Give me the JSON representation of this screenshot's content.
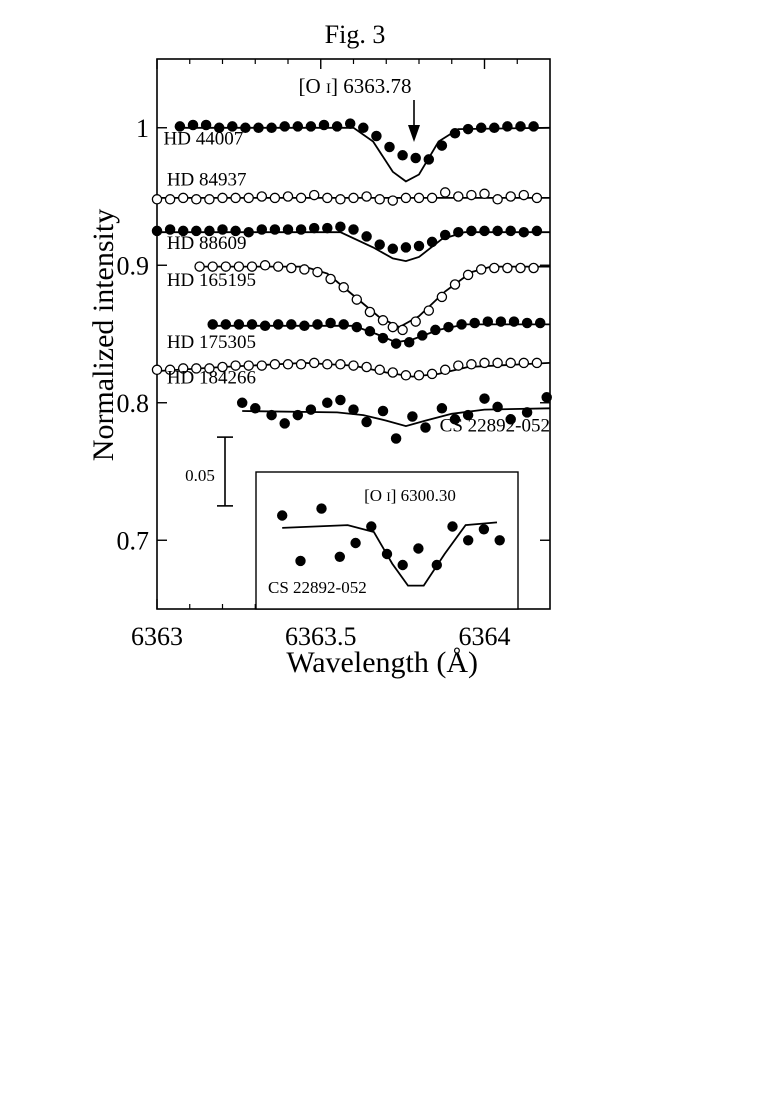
{
  "figure_label": "Fig. 3",
  "chart_data": {
    "type": "scatter",
    "xlabel": "Wavelength (Å)",
    "ylabel": "Normalized intensity",
    "xlim": [
      6363.0,
      6364.2
    ],
    "ylim": [
      0.65,
      1.05
    ],
    "xticks": [
      {
        "value": 6363,
        "label": "6363"
      },
      {
        "value": 6363.5,
        "label": "6363.5"
      },
      {
        "value": 6364,
        "label": "6364"
      }
    ],
    "yticks": [
      {
        "value": 0.7,
        "label": "0.7"
      },
      {
        "value": 0.8,
        "label": "0.8"
      },
      {
        "value": 0.9,
        "label": "0.9"
      },
      {
        "value": 1.0,
        "label": "1"
      }
    ],
    "line_label": {
      "text_main": "[O ",
      "text_ion": "I",
      "text_rest": "] 6363.78",
      "x": 6363.78
    },
    "scale_bar": {
      "label": "0.05",
      "from": 0.725,
      "to": 0.775
    },
    "series": [
      {
        "name": "HD 44007",
        "filled": true,
        "label_x": 6363.02,
        "label_y": 0.988,
        "points": [
          [
            6363.07,
            1.001
          ],
          [
            6363.11,
            1.002
          ],
          [
            6363.15,
            1.002
          ],
          [
            6363.19,
            1.0
          ],
          [
            6363.23,
            1.001
          ],
          [
            6363.27,
            1.0
          ],
          [
            6363.31,
            1.0
          ],
          [
            6363.35,
            1.0
          ],
          [
            6363.39,
            1.001
          ],
          [
            6363.43,
            1.001
          ],
          [
            6363.47,
            1.001
          ],
          [
            6363.51,
            1.002
          ],
          [
            6363.55,
            1.001
          ],
          [
            6363.59,
            1.003
          ],
          [
            6363.63,
            1.0
          ],
          [
            6363.67,
            0.994
          ],
          [
            6363.71,
            0.986
          ],
          [
            6363.75,
            0.98
          ],
          [
            6363.79,
            0.978
          ],
          [
            6363.83,
            0.977
          ],
          [
            6363.87,
            0.987
          ],
          [
            6363.91,
            0.996
          ],
          [
            6363.95,
            0.999
          ],
          [
            6363.99,
            1.0
          ],
          [
            6364.03,
            1.0
          ],
          [
            6364.07,
            1.001
          ],
          [
            6364.11,
            1.001
          ],
          [
            6364.15,
            1.001
          ]
        ],
        "model": [
          [
            6363.06,
            1.0
          ],
          [
            6363.6,
            1.0
          ],
          [
            6363.66,
            0.99
          ],
          [
            6363.72,
            0.968
          ],
          [
            6363.76,
            0.961
          ],
          [
            6363.8,
            0.966
          ],
          [
            6363.86,
            0.99
          ],
          [
            6363.92,
            0.999
          ],
          [
            6364.2,
            1.0
          ]
        ]
      },
      {
        "name": "HD 84937",
        "filled": false,
        "label_x": 6363.03,
        "label_y": 0.958,
        "points": [
          [
            6363.0,
            0.948
          ],
          [
            6363.04,
            0.948
          ],
          [
            6363.08,
            0.949
          ],
          [
            6363.12,
            0.948
          ],
          [
            6363.16,
            0.948
          ],
          [
            6363.2,
            0.949
          ],
          [
            6363.24,
            0.949
          ],
          [
            6363.28,
            0.949
          ],
          [
            6363.32,
            0.95
          ],
          [
            6363.36,
            0.949
          ],
          [
            6363.4,
            0.95
          ],
          [
            6363.44,
            0.949
          ],
          [
            6363.48,
            0.951
          ],
          [
            6363.52,
            0.949
          ],
          [
            6363.56,
            0.948
          ],
          [
            6363.6,
            0.949
          ],
          [
            6363.64,
            0.95
          ],
          [
            6363.68,
            0.948
          ],
          [
            6363.72,
            0.947
          ],
          [
            6363.76,
            0.949
          ],
          [
            6363.8,
            0.949
          ],
          [
            6363.84,
            0.949
          ],
          [
            6363.88,
            0.953
          ],
          [
            6363.92,
            0.95
          ],
          [
            6363.96,
            0.951
          ],
          [
            6364.0,
            0.952
          ],
          [
            6364.04,
            0.948
          ],
          [
            6364.08,
            0.95
          ],
          [
            6364.12,
            0.951
          ],
          [
            6364.16,
            0.949
          ]
        ],
        "model": [
          [
            6363.0,
            0.949
          ],
          [
            6364.2,
            0.949
          ]
        ]
      },
      {
        "name": "HD 88609",
        "filled": true,
        "label_x": 6363.03,
        "label_y": 0.912,
        "points": [
          [
            6363.0,
            0.925
          ],
          [
            6363.04,
            0.926
          ],
          [
            6363.08,
            0.925
          ],
          [
            6363.12,
            0.925
          ],
          [
            6363.16,
            0.925
          ],
          [
            6363.2,
            0.926
          ],
          [
            6363.24,
            0.925
          ],
          [
            6363.28,
            0.924
          ],
          [
            6363.32,
            0.926
          ],
          [
            6363.36,
            0.926
          ],
          [
            6363.4,
            0.926
          ],
          [
            6363.44,
            0.926
          ],
          [
            6363.48,
            0.927
          ],
          [
            6363.52,
            0.927
          ],
          [
            6363.56,
            0.928
          ],
          [
            6363.6,
            0.926
          ],
          [
            6363.64,
            0.921
          ],
          [
            6363.68,
            0.915
          ],
          [
            6363.72,
            0.912
          ],
          [
            6363.76,
            0.913
          ],
          [
            6363.8,
            0.914
          ],
          [
            6363.84,
            0.917
          ],
          [
            6363.88,
            0.922
          ],
          [
            6363.92,
            0.924
          ],
          [
            6363.96,
            0.925
          ],
          [
            6364.0,
            0.925
          ],
          [
            6364.04,
            0.925
          ],
          [
            6364.08,
            0.925
          ],
          [
            6364.12,
            0.924
          ],
          [
            6364.16,
            0.925
          ]
        ],
        "model": [
          [
            6363.0,
            0.924
          ],
          [
            6363.56,
            0.924
          ],
          [
            6363.66,
            0.913
          ],
          [
            6363.72,
            0.905
          ],
          [
            6363.76,
            0.903
          ],
          [
            6363.8,
            0.906
          ],
          [
            6363.87,
            0.919
          ],
          [
            6363.94,
            0.924
          ],
          [
            6364.2,
            0.924
          ]
        ]
      },
      {
        "name": "HD 165195",
        "filled": false,
        "label_x": 6363.03,
        "label_y": 0.885,
        "points": [
          [
            6363.13,
            0.899
          ],
          [
            6363.17,
            0.899
          ],
          [
            6363.21,
            0.899
          ],
          [
            6363.25,
            0.899
          ],
          [
            6363.29,
            0.899
          ],
          [
            6363.33,
            0.9
          ],
          [
            6363.37,
            0.899
          ],
          [
            6363.41,
            0.898
          ],
          [
            6363.45,
            0.897
          ],
          [
            6363.49,
            0.895
          ],
          [
            6363.53,
            0.89
          ],
          [
            6363.57,
            0.884
          ],
          [
            6363.61,
            0.875
          ],
          [
            6363.65,
            0.866
          ],
          [
            6363.69,
            0.86
          ],
          [
            6363.72,
            0.855
          ],
          [
            6363.75,
            0.853
          ],
          [
            6363.79,
            0.859
          ],
          [
            6363.83,
            0.867
          ],
          [
            6363.87,
            0.877
          ],
          [
            6363.91,
            0.886
          ],
          [
            6363.95,
            0.893
          ],
          [
            6363.99,
            0.897
          ],
          [
            6364.03,
            0.898
          ],
          [
            6364.07,
            0.898
          ],
          [
            6364.11,
            0.898
          ],
          [
            6364.15,
            0.898
          ]
        ],
        "model": [
          [
            6363.13,
            0.899
          ],
          [
            6363.45,
            0.899
          ],
          [
            6363.52,
            0.894
          ],
          [
            6363.6,
            0.878
          ],
          [
            6363.68,
            0.862
          ],
          [
            6363.74,
            0.855
          ],
          [
            6363.8,
            0.863
          ],
          [
            6363.88,
            0.881
          ],
          [
            6363.96,
            0.895
          ],
          [
            6364.02,
            0.899
          ],
          [
            6364.2,
            0.899
          ]
        ]
      },
      {
        "name": "HD 175305",
        "filled": true,
        "label_x": 6363.03,
        "label_y": 0.84,
        "points": [
          [
            6363.17,
            0.857
          ],
          [
            6363.21,
            0.857
          ],
          [
            6363.25,
            0.857
          ],
          [
            6363.29,
            0.857
          ],
          [
            6363.33,
            0.856
          ],
          [
            6363.37,
            0.857
          ],
          [
            6363.41,
            0.857
          ],
          [
            6363.45,
            0.856
          ],
          [
            6363.49,
            0.857
          ],
          [
            6363.53,
            0.858
          ],
          [
            6363.57,
            0.857
          ],
          [
            6363.61,
            0.855
          ],
          [
            6363.65,
            0.852
          ],
          [
            6363.69,
            0.847
          ],
          [
            6363.73,
            0.843
          ],
          [
            6363.77,
            0.844
          ],
          [
            6363.81,
            0.849
          ],
          [
            6363.85,
            0.853
          ],
          [
            6363.89,
            0.855
          ],
          [
            6363.93,
            0.857
          ],
          [
            6363.97,
            0.858
          ],
          [
            6364.01,
            0.859
          ],
          [
            6364.05,
            0.859
          ],
          [
            6364.09,
            0.859
          ],
          [
            6364.13,
            0.858
          ],
          [
            6364.17,
            0.858
          ]
        ],
        "model": [
          [
            6363.16,
            0.856
          ],
          [
            6363.6,
            0.856
          ],
          [
            6363.67,
            0.85
          ],
          [
            6363.73,
            0.844
          ],
          [
            6363.78,
            0.846
          ],
          [
            6363.86,
            0.853
          ],
          [
            6363.94,
            0.857
          ],
          [
            6364.2,
            0.857
          ]
        ]
      },
      {
        "name": "HD 184266",
        "filled": false,
        "label_x": 6363.03,
        "label_y": 0.814,
        "points": [
          [
            6363.0,
            0.824
          ],
          [
            6363.04,
            0.824
          ],
          [
            6363.08,
            0.825
          ],
          [
            6363.12,
            0.825
          ],
          [
            6363.16,
            0.825
          ],
          [
            6363.2,
            0.826
          ],
          [
            6363.24,
            0.827
          ],
          [
            6363.28,
            0.827
          ],
          [
            6363.32,
            0.827
          ],
          [
            6363.36,
            0.828
          ],
          [
            6363.4,
            0.828
          ],
          [
            6363.44,
            0.828
          ],
          [
            6363.48,
            0.829
          ],
          [
            6363.52,
            0.828
          ],
          [
            6363.56,
            0.828
          ],
          [
            6363.6,
            0.827
          ],
          [
            6363.64,
            0.826
          ],
          [
            6363.68,
            0.824
          ],
          [
            6363.72,
            0.822
          ],
          [
            6363.76,
            0.82
          ],
          [
            6363.8,
            0.82
          ],
          [
            6363.84,
            0.821
          ],
          [
            6363.88,
            0.824
          ],
          [
            6363.92,
            0.827
          ],
          [
            6363.96,
            0.828
          ],
          [
            6364.0,
            0.829
          ],
          [
            6364.04,
            0.829
          ],
          [
            6364.08,
            0.829
          ],
          [
            6364.12,
            0.829
          ],
          [
            6364.16,
            0.829
          ]
        ],
        "model": [
          [
            6363.0,
            0.823
          ],
          [
            6363.2,
            0.826
          ],
          [
            6363.45,
            0.829
          ],
          [
            6363.6,
            0.827
          ],
          [
            6363.7,
            0.822
          ],
          [
            6363.78,
            0.819
          ],
          [
            6363.86,
            0.821
          ],
          [
            6363.95,
            0.826
          ],
          [
            6364.2,
            0.829
          ]
        ]
      },
      {
        "name": "CS 22892-052",
        "filled": true,
        "label_x": 6363.77,
        "label_y": 0.779,
        "points": [
          [
            6363.26,
            0.8
          ],
          [
            6363.3,
            0.796
          ],
          [
            6363.35,
            0.791
          ],
          [
            6363.39,
            0.785
          ],
          [
            6363.43,
            0.791
          ],
          [
            6363.47,
            0.795
          ],
          [
            6363.52,
            0.8
          ],
          [
            6363.56,
            0.802
          ],
          [
            6363.6,
            0.795
          ],
          [
            6363.64,
            0.786
          ],
          [
            6363.69,
            0.794
          ],
          [
            6363.73,
            0.774
          ],
          [
            6363.78,
            0.79
          ],
          [
            6363.82,
            0.782
          ],
          [
            6363.87,
            0.796
          ],
          [
            6363.91,
            0.788
          ],
          [
            6363.95,
            0.791
          ],
          [
            6364.0,
            0.803
          ],
          [
            6364.04,
            0.797
          ],
          [
            6364.08,
            0.788
          ],
          [
            6364.13,
            0.793
          ],
          [
            6364.19,
            0.804
          ]
        ],
        "model": [
          [
            6363.26,
            0.794
          ],
          [
            6363.55,
            0.793
          ],
          [
            6363.63,
            0.791
          ],
          [
            6363.7,
            0.787
          ],
          [
            6363.76,
            0.783
          ],
          [
            6363.82,
            0.787
          ],
          [
            6363.9,
            0.792
          ],
          [
            6364.0,
            0.795
          ],
          [
            6364.2,
            0.796
          ]
        ]
      }
    ],
    "inset": {
      "title_main": "[O ",
      "title_ion": "I",
      "title_rest": "] 6300.30",
      "series_name": "CS 22892-052",
      "points": [
        [
          0.1,
          0.718
        ],
        [
          0.17,
          0.685
        ],
        [
          0.25,
          0.723
        ],
        [
          0.32,
          0.688
        ],
        [
          0.38,
          0.698
        ],
        [
          0.44,
          0.71
        ],
        [
          0.5,
          0.69
        ],
        [
          0.56,
          0.682
        ],
        [
          0.62,
          0.694
        ],
        [
          0.69,
          0.682
        ],
        [
          0.75,
          0.71
        ],
        [
          0.81,
          0.7
        ],
        [
          0.87,
          0.708
        ],
        [
          0.93,
          0.7
        ]
      ],
      "model": [
        [
          0.1,
          0.709
        ],
        [
          0.35,
          0.711
        ],
        [
          0.45,
          0.706
        ],
        [
          0.52,
          0.683
        ],
        [
          0.58,
          0.667
        ],
        [
          0.64,
          0.667
        ],
        [
          0.72,
          0.69
        ],
        [
          0.8,
          0.711
        ],
        [
          0.92,
          0.713
        ]
      ]
    }
  }
}
